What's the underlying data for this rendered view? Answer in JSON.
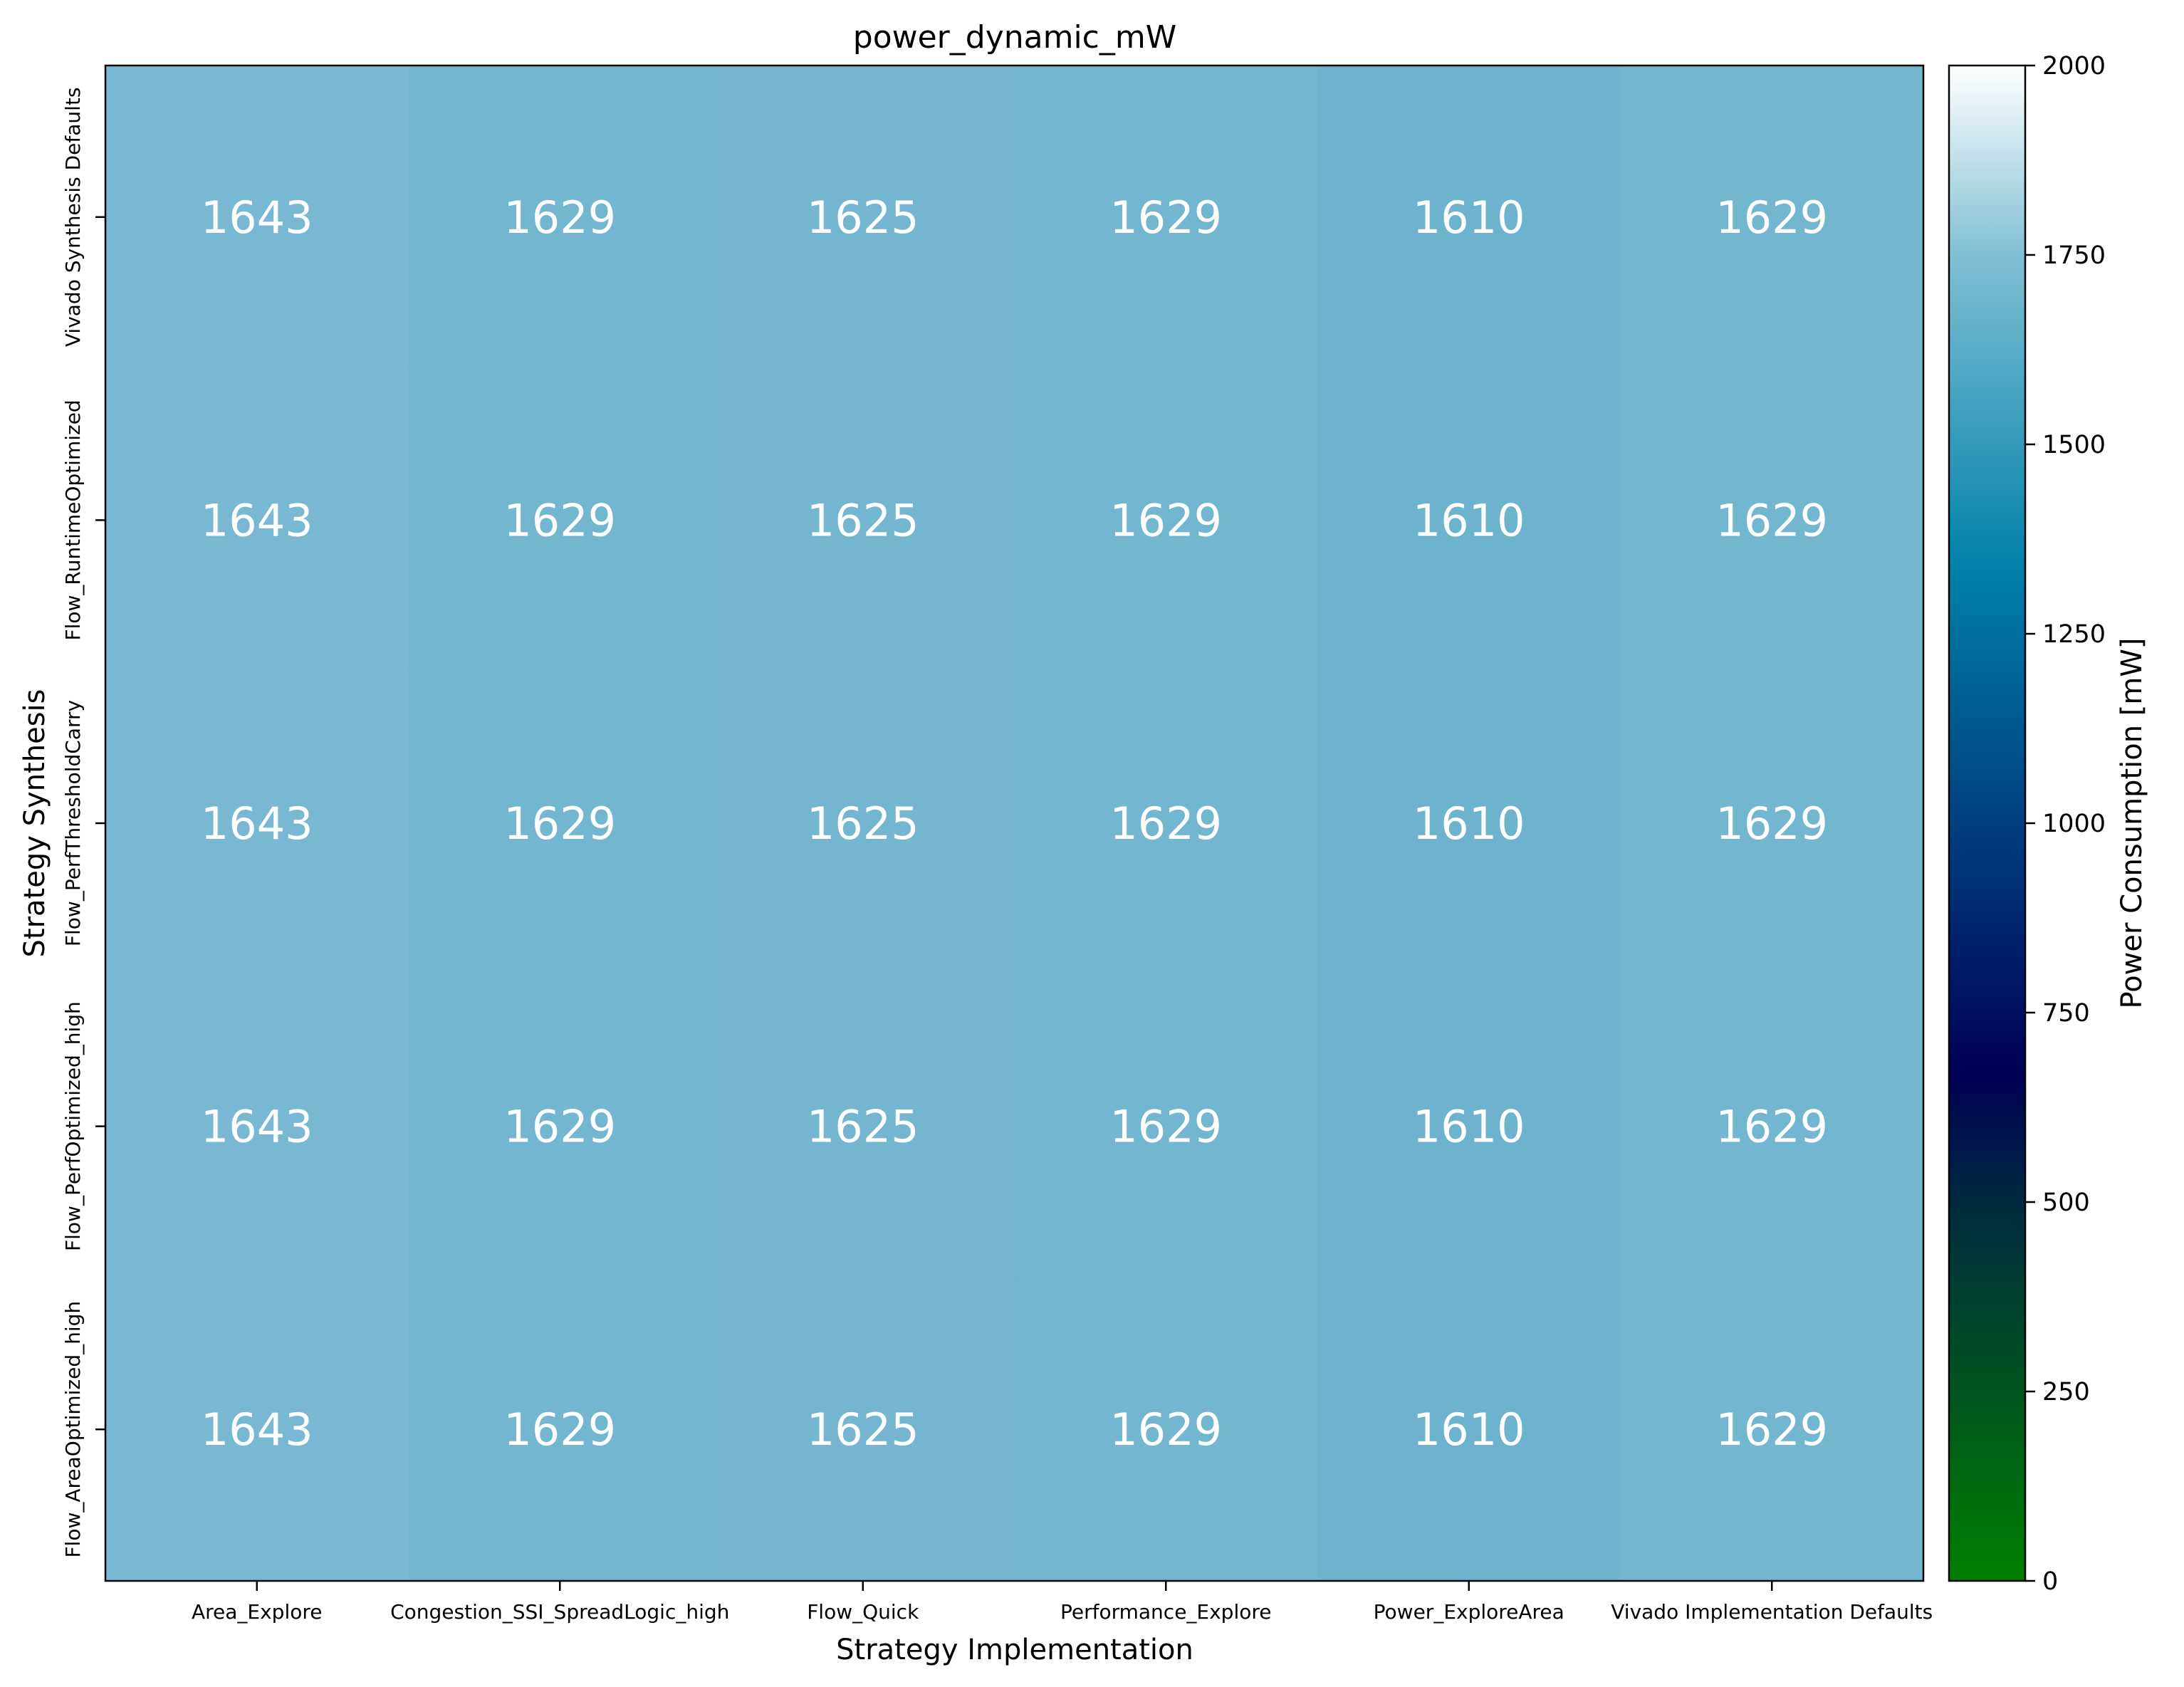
{
  "chart_data": {
    "type": "heatmap",
    "title": "power_dynamic_mW",
    "xlabel": "Strategy Implementation",
    "ylabel": "Strategy Synthesis",
    "x_categories": [
      "Area_Explore",
      "Congestion_SSI_SpreadLogic_high",
      "Flow_Quick",
      "Performance_Explore",
      "Power_ExploreArea",
      "Vivado Implementation Defaults"
    ],
    "y_categories": [
      "Vivado Synthesis Defaults",
      "Flow_RuntimeOptimized",
      "Flow_PerfThresholdCarry",
      "Flow_PerfOptimized_high",
      "Flow_AreaOptimized_high"
    ],
    "values": [
      [
        1643,
        1629,
        1625,
        1629,
        1610,
        1629
      ],
      [
        1643,
        1629,
        1625,
        1629,
        1610,
        1629
      ],
      [
        1643,
        1629,
        1625,
        1629,
        1610,
        1629
      ],
      [
        1643,
        1629,
        1625,
        1629,
        1610,
        1629
      ],
      [
        1643,
        1629,
        1625,
        1629,
        1610,
        1629
      ]
    ],
    "colorbar": {
      "label": "Power Consumption [mW]",
      "range": [
        0,
        2000
      ],
      "ticks": [
        0,
        250,
        500,
        750,
        1000,
        1250,
        1500,
        1750,
        2000
      ],
      "colormap": "ocean",
      "stops": [
        {
          "value": 0,
          "color": "#008000"
        },
        {
          "value": 250,
          "color": "#00551F"
        },
        {
          "value": 500,
          "color": "#002A3F"
        },
        {
          "value": 667,
          "color": "#000055"
        },
        {
          "value": 1000,
          "color": "#003F80"
        },
        {
          "value": 1333,
          "color": "#0080AA"
        },
        {
          "value": 1750,
          "color": "#80C0D4"
        },
        {
          "value": 2000,
          "color": "#FFFFFF"
        }
      ]
    },
    "cell_colors": {
      "1643": "#78B8D2",
      "1629": "#73B6D0",
      "1625": "#74B6D0",
      "1610": "#6DB3CD"
    },
    "grid": false
  }
}
